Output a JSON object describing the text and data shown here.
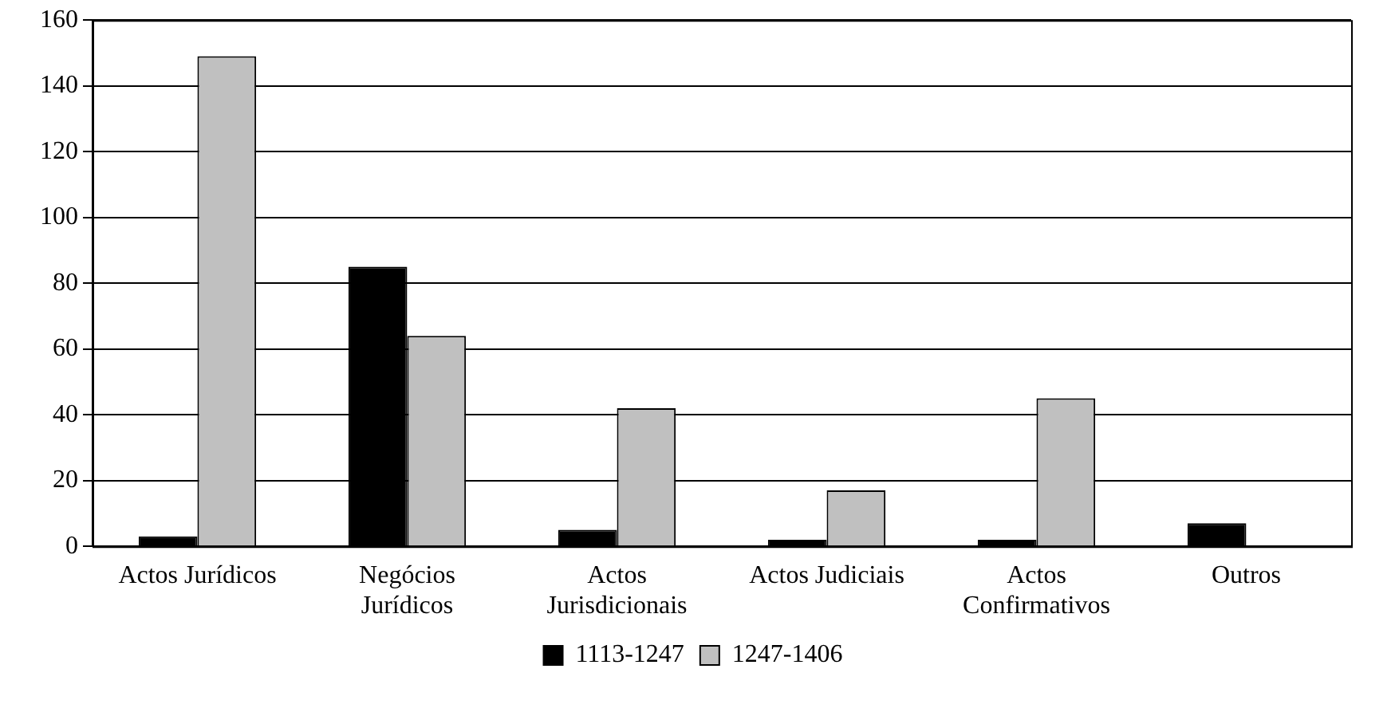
{
  "chart_data": {
    "type": "bar",
    "categories": [
      "Actos Jurídicos",
      "Negócios Jurídicos",
      "Actos Jurisdicionais",
      "Actos Judiciais",
      "Actos Confirmativos",
      "Outros"
    ],
    "series": [
      {
        "name": "1113-1247",
        "color": "#000000",
        "values": [
          3,
          85,
          5,
          2,
          2,
          7
        ]
      },
      {
        "name": "1247-1406",
        "color": "#c0c0c0",
        "values": [
          149,
          64,
          42,
          17,
          45,
          0
        ]
      }
    ],
    "ylim": [
      0,
      160
    ],
    "yticks": [
      0,
      20,
      40,
      60,
      80,
      100,
      120,
      140,
      160
    ],
    "grid": "y",
    "legend": "bottom"
  }
}
